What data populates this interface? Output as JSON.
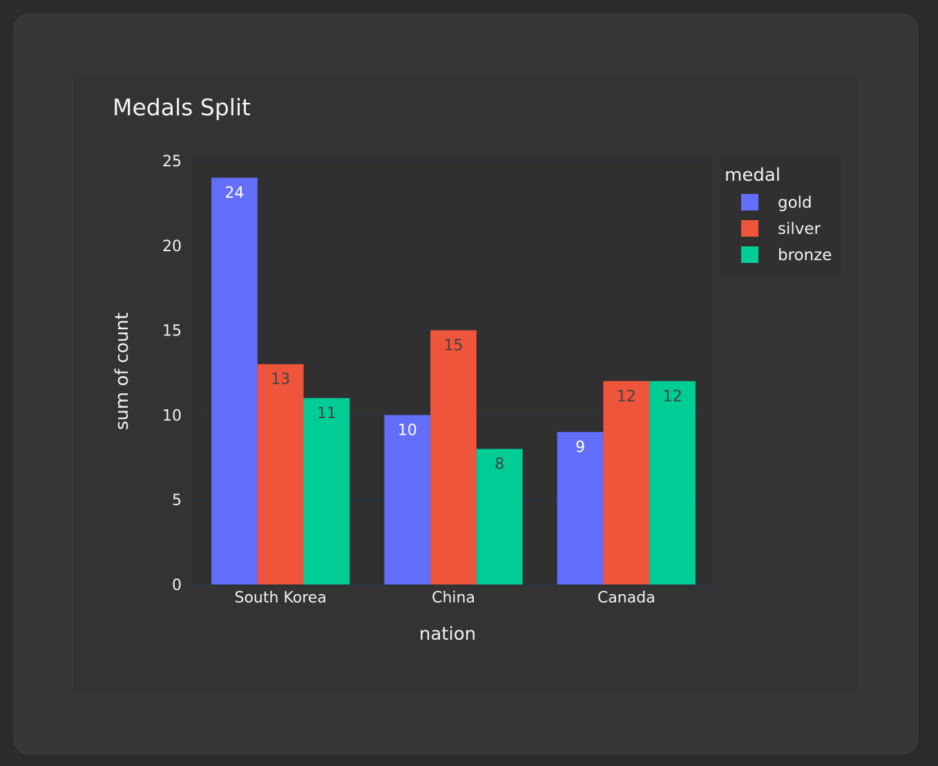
{
  "chart_data": {
    "type": "bar",
    "title": "Medals Split",
    "xlabel": "nation",
    "ylabel": "sum of count",
    "categories": [
      "South Korea",
      "China",
      "Canada"
    ],
    "series": [
      {
        "name": "gold",
        "values": [
          24,
          10,
          9
        ],
        "color": "#636efa"
      },
      {
        "name": "silver",
        "values": [
          13,
          15,
          12
        ],
        "color": "#ef553b"
      },
      {
        "name": "bronze",
        "values": [
          11,
          8,
          12
        ],
        "color": "#00cc96"
      }
    ],
    "ylim": [
      0,
      25
    ],
    "yticks": [
      0,
      5,
      10,
      15,
      20,
      25
    ],
    "legend_title": "medal",
    "legend_position": "top-right",
    "grid": true
  }
}
